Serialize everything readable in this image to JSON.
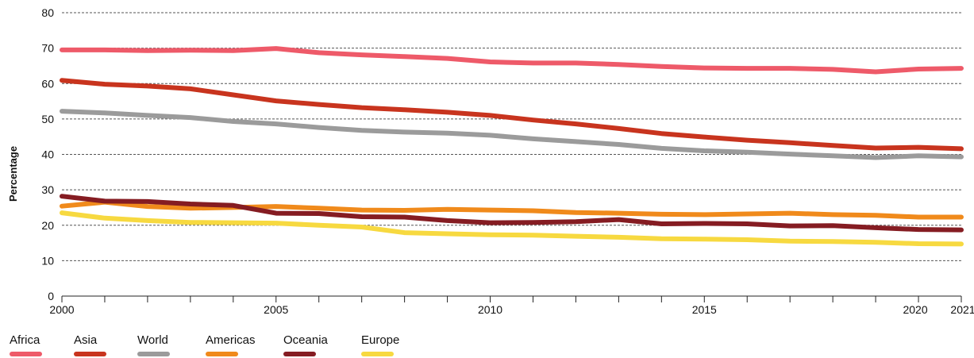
{
  "chart_data": {
    "type": "line",
    "ylabel": "Percentage",
    "xlabel": "",
    "ylim": [
      0,
      80
    ],
    "xlim": [
      2000,
      2021
    ],
    "yticks": [
      0,
      10,
      20,
      30,
      40,
      50,
      60,
      70,
      80
    ],
    "xtick_labels": [
      "2000",
      "2005",
      "2010",
      "2015",
      "2020",
      "2021"
    ],
    "grid": "horizontal dashed",
    "legend_position": "bottom-left",
    "x": [
      2000,
      2001,
      2002,
      2003,
      2004,
      2005,
      2006,
      2007,
      2008,
      2009,
      2010,
      2011,
      2012,
      2013,
      2014,
      2015,
      2016,
      2017,
      2018,
      2019,
      2020,
      2021
    ],
    "series": [
      {
        "name": "Africa",
        "color": "#EE5A69",
        "values": [
          69.5,
          69.5,
          69.3,
          69.4,
          69.3,
          69.9,
          68.7,
          68.1,
          67.6,
          67.1,
          66.1,
          65.8,
          65.8,
          65.4,
          64.8,
          64.4,
          64.3,
          64.3,
          64.0,
          63.3,
          64.1,
          64.3
        ]
      },
      {
        "name": "Asia",
        "color": "#C8341E",
        "values": [
          60.9,
          59.8,
          59.3,
          58.5,
          56.8,
          55.1,
          54.1,
          53.2,
          52.6,
          51.9,
          51.0,
          49.7,
          48.6,
          47.3,
          45.9,
          44.9,
          44.0,
          43.3,
          42.5,
          41.8,
          42.0,
          41.6
        ]
      },
      {
        "name": "World",
        "color": "#9B9B9B",
        "values": [
          52.2,
          51.7,
          51.0,
          50.4,
          49.3,
          48.6,
          47.6,
          46.8,
          46.3,
          46.0,
          45.4,
          44.4,
          43.6,
          42.8,
          41.7,
          41.0,
          40.6,
          40.1,
          39.6,
          39.1,
          39.6,
          39.3
        ]
      },
      {
        "name": "Americas",
        "color": "#F08A1B",
        "values": [
          25.4,
          26.5,
          25.3,
          24.8,
          25.0,
          25.3,
          24.8,
          24.3,
          24.2,
          24.5,
          24.3,
          24.1,
          23.6,
          23.4,
          23.1,
          23.0,
          23.2,
          23.4,
          23.0,
          22.8,
          22.3,
          22.3
        ]
      },
      {
        "name": "Oceania",
        "color": "#851C22",
        "values": [
          28.2,
          26.8,
          26.7,
          26.0,
          25.6,
          23.4,
          23.3,
          22.4,
          22.3,
          21.3,
          20.7,
          20.8,
          21.0,
          21.6,
          20.4,
          20.5,
          20.4,
          19.8,
          19.9,
          19.3,
          18.8,
          18.7
        ]
      },
      {
        "name": "Europe",
        "color": "#F7D940",
        "values": [
          23.5,
          22.0,
          21.3,
          20.8,
          20.7,
          20.6,
          20.0,
          19.5,
          17.9,
          17.6,
          17.3,
          17.2,
          16.9,
          16.6,
          16.2,
          16.1,
          15.9,
          15.5,
          15.4,
          15.2,
          14.8,
          14.7
        ]
      }
    ]
  }
}
